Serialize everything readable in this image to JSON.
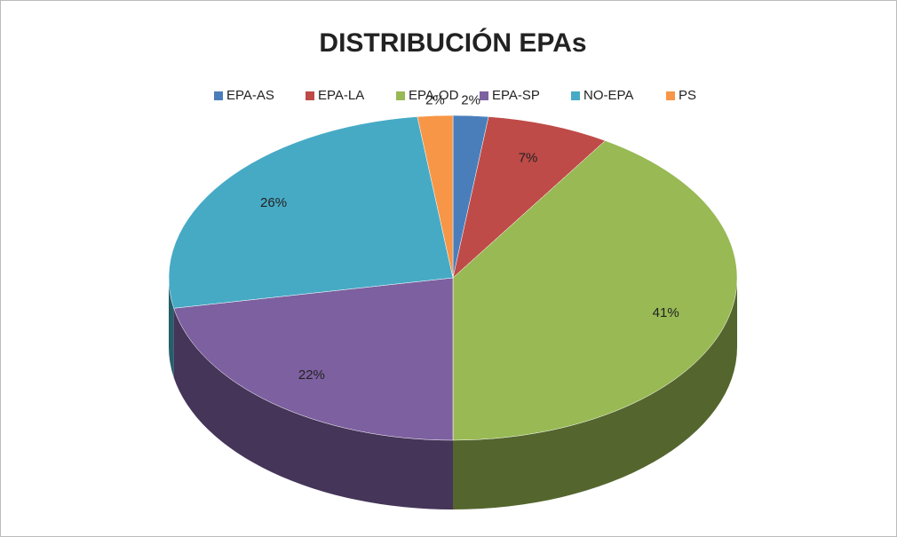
{
  "chart_data": {
    "type": "pie3d",
    "title": "DISTRIBUCIÓN EPAs",
    "categories": [
      "EPA-AS",
      "EPA-LA",
      "EPA-OD",
      "EPA-SP",
      "NO-EPA",
      "PS"
    ],
    "values": [
      2,
      7,
      41,
      22,
      26,
      2
    ],
    "value_labels": [
      "2%",
      "7%",
      "41%",
      "22%",
      "26%",
      "2%"
    ],
    "colors": [
      "#4a7ebb",
      "#be4b48",
      "#98b954",
      "#7d60a0",
      "#46aac5",
      "#f79646"
    ],
    "legend": "top"
  }
}
